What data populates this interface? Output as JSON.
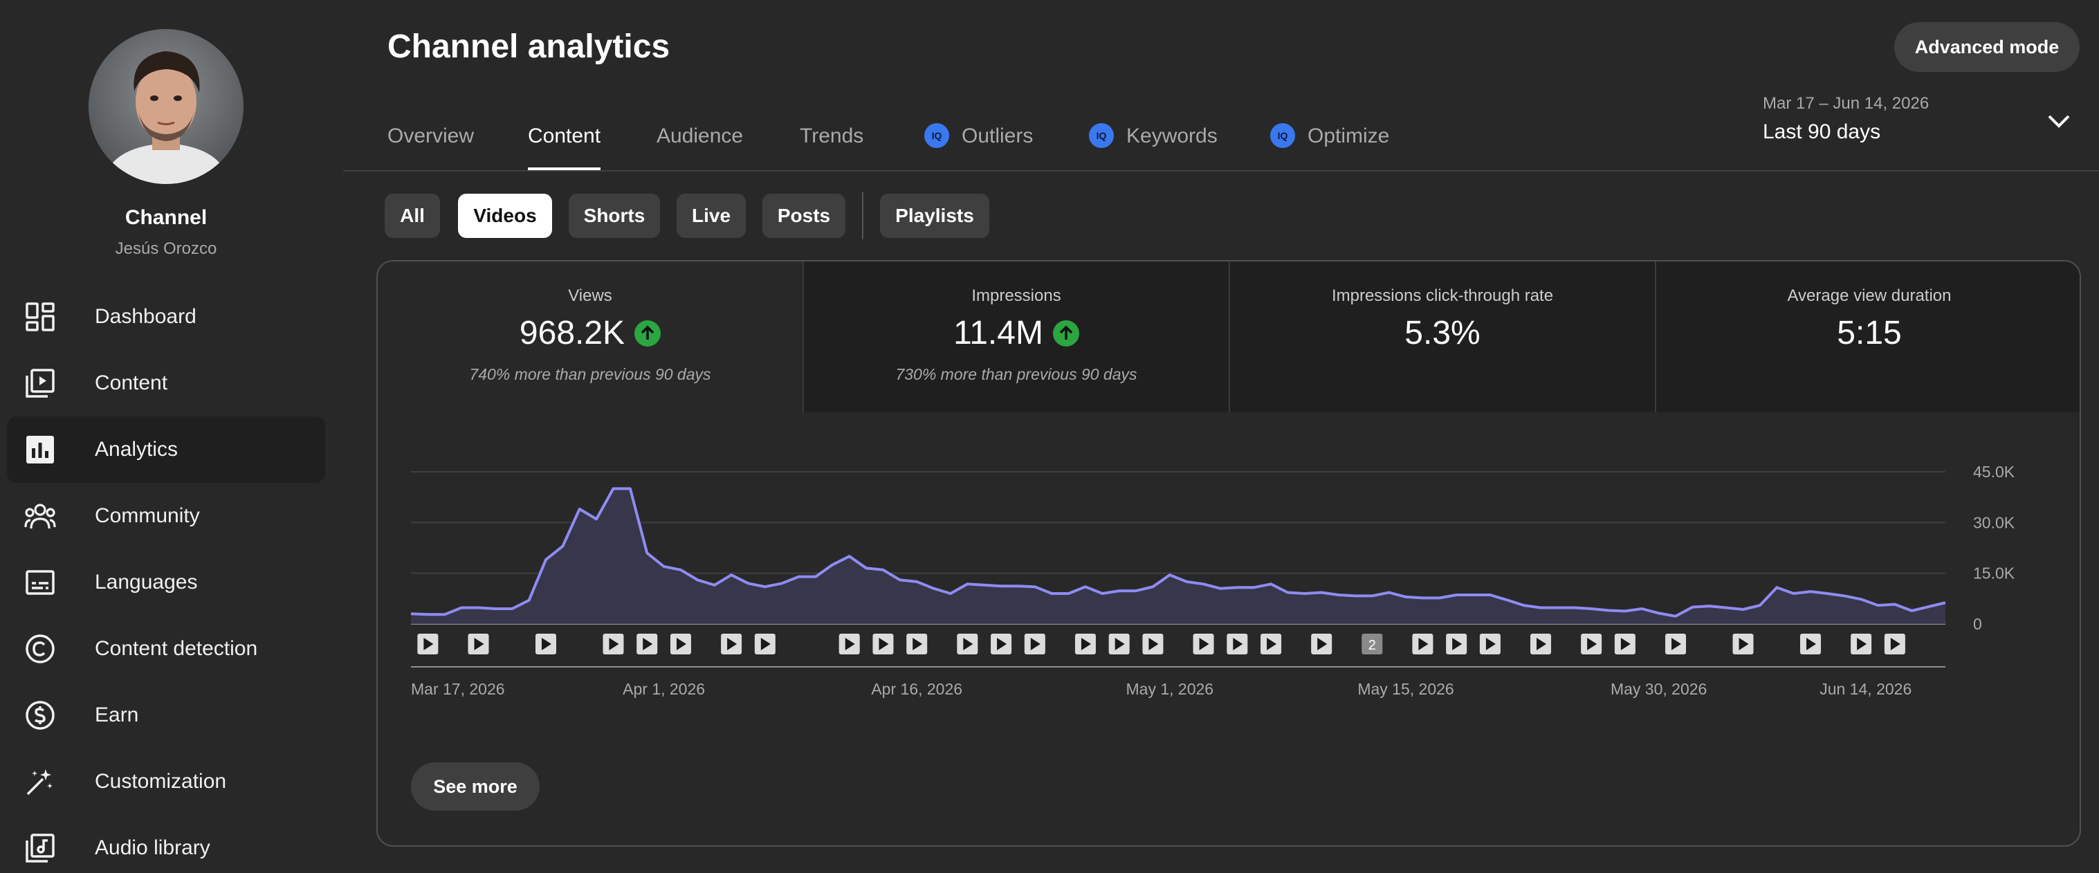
{
  "sidebar": {
    "channel_title": "Channel",
    "channel_name": "Jesús Orozco",
    "items": [
      {
        "label": "Dashboard",
        "icon": "dashboard-icon"
      },
      {
        "label": "Content",
        "icon": "content-icon"
      },
      {
        "label": "Analytics",
        "icon": "analytics-icon",
        "active": true
      },
      {
        "label": "Community",
        "icon": "community-icon"
      },
      {
        "label": "Languages",
        "icon": "subtitles-icon"
      },
      {
        "label": "Content detection",
        "icon": "copyright-icon"
      },
      {
        "label": "Earn",
        "icon": "dollar-icon"
      },
      {
        "label": "Customization",
        "icon": "magic-wand-icon"
      },
      {
        "label": "Audio library",
        "icon": "audio-library-icon"
      }
    ]
  },
  "header": {
    "title": "Channel analytics",
    "advanced_mode": "Advanced mode",
    "tabs": [
      {
        "label": "Overview"
      },
      {
        "label": "Content",
        "active": true
      },
      {
        "label": "Audience"
      },
      {
        "label": "Trends"
      },
      {
        "label": "Outliers",
        "badge": "IQ"
      },
      {
        "label": "Keywords",
        "badge": "IQ"
      },
      {
        "label": "Optimize",
        "badge": "IQ"
      }
    ],
    "date_range": {
      "dates": "Mar 17 – Jun 14, 2026",
      "period": "Last 90 days"
    }
  },
  "filters": {
    "chips": [
      "All",
      "Videos",
      "Shorts",
      "Live",
      "Posts",
      "Playlists"
    ],
    "selected": "Videos"
  },
  "metrics": [
    {
      "label": "Views",
      "value": "968.2K",
      "trend": "up",
      "note": "740% more than previous 90 days"
    },
    {
      "label": "Impressions",
      "value": "11.4M",
      "trend": "up",
      "note": "730% more than previous 90 days"
    },
    {
      "label": "Impressions click-through rate",
      "value": "5.3%",
      "note": ""
    },
    {
      "label": "Average view duration",
      "value": "5:15",
      "note": ""
    }
  ],
  "chart_data": {
    "type": "area",
    "series": [
      {
        "values": [
          3000,
          2800,
          2800,
          4800,
          4800,
          4500,
          4500,
          7000,
          19000,
          23000,
          34000,
          31000,
          40000,
          40000,
          21000,
          17000,
          16000,
          13000,
          11500,
          14500,
          12000,
          11000,
          12000,
          14000,
          14000,
          17500,
          20000,
          16500,
          16000,
          13000,
          12500,
          10500,
          9000,
          11800,
          11500,
          11200,
          11200,
          11000,
          9000,
          9000,
          11000,
          9000,
          9800,
          9800,
          11000,
          14500,
          12500,
          11800,
          10500,
          10800,
          10800,
          11800,
          9300,
          9000,
          9300,
          8600,
          8300,
          8300,
          9300,
          8000,
          7700,
          7700,
          8600,
          8600,
          8600,
          7100,
          5500,
          4800,
          4800,
          4800,
          4500,
          4000,
          3800,
          4500,
          3200,
          2300,
          5000,
          5300,
          4800,
          4300,
          5500,
          10800,
          9000,
          9600,
          9000,
          8300,
          7300,
          5500,
          5800,
          3900,
          5100,
          6300
        ]
      }
    ],
    "x_tick_labels": [
      "Mar 17, 2026",
      "Apr 1, 2026",
      "Apr 16, 2026",
      "May 1, 2026",
      "May 15, 2026",
      "May 30, 2026",
      "Jun 14, 2026"
    ],
    "y_tick_labels": [
      "0",
      "15.0K",
      "30.0K",
      "45.0K"
    ],
    "ylim": [
      0,
      45000
    ],
    "grid": true,
    "color": "#8f8bf2",
    "video_markers": [
      {
        "day": 1
      },
      {
        "day": 4
      },
      {
        "day": 8
      },
      {
        "day": 12
      },
      {
        "day": 14
      },
      {
        "day": 16
      },
      {
        "day": 19
      },
      {
        "day": 21
      },
      {
        "day": 26
      },
      {
        "day": 28
      },
      {
        "day": 30
      },
      {
        "day": 33
      },
      {
        "day": 35
      },
      {
        "day": 37
      },
      {
        "day": 40
      },
      {
        "day": 42
      },
      {
        "day": 44
      },
      {
        "day": 47
      },
      {
        "day": 49
      },
      {
        "day": 51
      },
      {
        "day": 54
      },
      {
        "day": 57,
        "count": "2"
      },
      {
        "day": 60
      },
      {
        "day": 62
      },
      {
        "day": 64
      },
      {
        "day": 67
      },
      {
        "day": 70
      },
      {
        "day": 72
      },
      {
        "day": 75
      },
      {
        "day": 79
      },
      {
        "day": 83
      },
      {
        "day": 86
      },
      {
        "day": 88
      }
    ]
  },
  "actions": {
    "see_more": "See more"
  }
}
